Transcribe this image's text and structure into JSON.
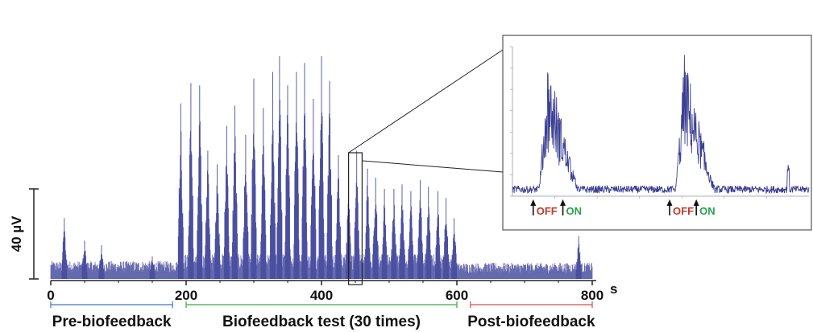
{
  "chart_data": [
    {
      "type": "line",
      "title": "",
      "xlabel": "",
      "x_unit": "s",
      "ylabel": "",
      "xlim": [
        0,
        800
      ],
      "xticks": [
        0,
        200,
        400,
        600,
        800
      ],
      "scale_bar": {
        "label": "40 µV",
        "value_uV": 40
      },
      "series": [
        {
          "color": "#4a4fa0",
          "baseline_envelope_uV": 8,
          "burst_peaks": [
            {
              "x": 20,
              "y": 27
            },
            {
              "x": 50,
              "y": 17
            },
            {
              "x": 75,
              "y": 15
            },
            {
              "x": 150,
              "y": 10
            },
            {
              "x": 192,
              "y": 78
            },
            {
              "x": 207,
              "y": 87
            },
            {
              "x": 220,
              "y": 86
            },
            {
              "x": 232,
              "y": 57
            },
            {
              "x": 246,
              "y": 51
            },
            {
              "x": 260,
              "y": 68
            },
            {
              "x": 272,
              "y": 77
            },
            {
              "x": 288,
              "y": 64
            },
            {
              "x": 300,
              "y": 89
            },
            {
              "x": 314,
              "y": 76
            },
            {
              "x": 328,
              "y": 92
            },
            {
              "x": 338,
              "y": 99
            },
            {
              "x": 350,
              "y": 86
            },
            {
              "x": 363,
              "y": 92
            },
            {
              "x": 375,
              "y": 96
            },
            {
              "x": 388,
              "y": 80
            },
            {
              "x": 400,
              "y": 99
            },
            {
              "x": 412,
              "y": 88
            },
            {
              "x": 425,
              "y": 55
            },
            {
              "x": 440,
              "y": 45
            },
            {
              "x": 452,
              "y": 57
            },
            {
              "x": 468,
              "y": 49
            },
            {
              "x": 480,
              "y": 45
            },
            {
              "x": 493,
              "y": 40
            },
            {
              "x": 507,
              "y": 40
            },
            {
              "x": 519,
              "y": 42
            },
            {
              "x": 532,
              "y": 39
            },
            {
              "x": 546,
              "y": 44
            },
            {
              "x": 558,
              "y": 41
            },
            {
              "x": 572,
              "y": 39
            },
            {
              "x": 584,
              "y": 36
            },
            {
              "x": 596,
              "y": 27
            },
            {
              "x": 780,
              "y": 19
            }
          ]
        }
      ],
      "phases": [
        {
          "label": "Pre-biofeedback",
          "range": [
            0,
            180
          ],
          "color": "#5b8fd9"
        },
        {
          "label": "Biofeedback test (30 times)",
          "range": [
            200,
            600
          ],
          "color": "#58b95f"
        },
        {
          "label": "Post-biofeedback",
          "range": [
            620,
            800
          ],
          "color": "#e06a6a"
        }
      ],
      "zoom_window": [
        440,
        460
      ]
    },
    {
      "type": "line",
      "title": "",
      "role": "zoomed inset of two bursts",
      "series": [
        {
          "color": "#3b3f92",
          "burst_peaks": [
            {
              "x": 0.1,
              "y": 88
            },
            {
              "x": 0.56,
              "y": 90
            }
          ]
        }
      ],
      "markers": [
        {
          "label": "OFF",
          "x": 0.07,
          "color": "#c0392b"
        },
        {
          "label": "ON",
          "x": 0.17,
          "color": "#27a34b"
        },
        {
          "label": "OFF",
          "x": 0.53,
          "color": "#c0392b"
        },
        {
          "label": "ON",
          "x": 0.62,
          "color": "#27a34b"
        }
      ]
    }
  ]
}
